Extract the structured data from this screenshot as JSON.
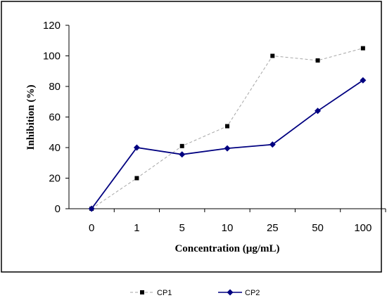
{
  "chart_data": {
    "type": "line",
    "categories": [
      "0",
      "1",
      "5",
      "10",
      "25",
      "50",
      "100"
    ],
    "xlabel": "Concentration (µg/mL)",
    "ylabel": "Inhibition (%)",
    "ylim": [
      0,
      120
    ],
    "yticks": [
      "0",
      "20",
      "40",
      "60",
      "80",
      "100",
      "120"
    ],
    "grid": false,
    "legend_position": "bottom",
    "series": [
      {
        "name": "CP1",
        "values": [
          0,
          20,
          41,
          54,
          100,
          97,
          105
        ],
        "color": "#000000",
        "line_style": "dashed",
        "line_color": "#a6a6a6",
        "marker": "square"
      },
      {
        "name": "CP2",
        "values": [
          0,
          40,
          35.5,
          39.5,
          42,
          64,
          84
        ],
        "color": "#000080",
        "line_style": "solid",
        "marker": "diamond"
      }
    ]
  }
}
